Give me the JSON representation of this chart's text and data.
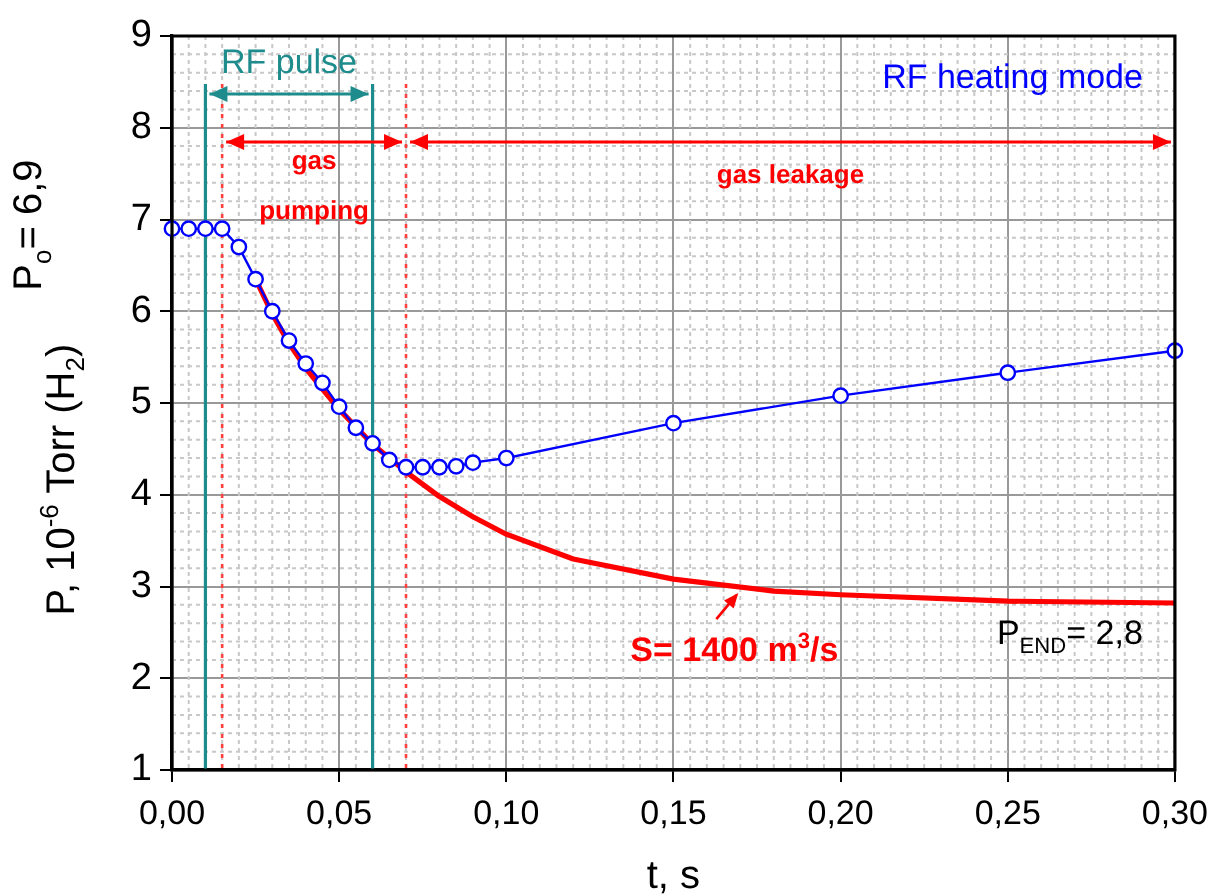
{
  "chart_data": {
    "type": "line",
    "xlabel": "t, s",
    "ylabel": "P, 10$^{-6}$ Torr (H$_{2}$)",
    "xlim": [
      0,
      0.3
    ],
    "ylim": [
      1,
      9
    ],
    "xticks": [
      {
        "value": 0,
        "label": "0,00"
      },
      {
        "value": 0.05,
        "label": "0,05"
      },
      {
        "value": 0.1,
        "label": "0,10"
      },
      {
        "value": 0.15,
        "label": "0,15"
      },
      {
        "value": 0.2,
        "label": "0,20"
      },
      {
        "value": 0.25,
        "label": "0,25"
      },
      {
        "value": 0.3,
        "label": "0,30"
      }
    ],
    "yticks": [
      1,
      2,
      3,
      4,
      5,
      6,
      7,
      8,
      9
    ],
    "grid": true,
    "legend": false,
    "marker": "circle",
    "series": [
      {
        "color": "#0000ff",
        "x": [
          0,
          0.005,
          0.01,
          0.015,
          0.02,
          0.025,
          0.03,
          0.035,
          0.04,
          0.045,
          0.05,
          0.055,
          0.06,
          0.065,
          0.07,
          0.075,
          0.08,
          0.085,
          0.09,
          0.1,
          0.15,
          0.2,
          0.25,
          0.3
        ],
        "values": [
          6.9,
          6.9,
          6.9,
          6.9,
          6.7,
          6.35,
          6.0,
          5.68,
          5.43,
          5.22,
          4.96,
          4.73,
          4.56,
          4.38,
          4.3,
          4.3,
          4.3,
          4.31,
          4.35,
          4.4,
          4.78,
          5.08,
          5.33,
          5.57
        ]
      },
      {
        "color": "#ff0000",
        "marker": "none",
        "x": [
          0.025,
          0.03,
          0.035,
          0.04,
          0.045,
          0.05,
          0.06,
          0.07,
          0.08,
          0.09,
          0.1,
          0.12,
          0.15,
          0.18,
          0.2,
          0.25,
          0.3
        ],
        "values": [
          6.35,
          5.97,
          5.65,
          5.38,
          5.15,
          4.93,
          4.55,
          4.25,
          3.98,
          3.76,
          3.57,
          3.3,
          3.08,
          2.95,
          2.91,
          2.84,
          2.82
        ]
      }
    ],
    "ref_lines": [
      {
        "axis": "x",
        "value": 0.01,
        "color": "#1e8c8c",
        "line_style": "solid"
      },
      {
        "axis": "x",
        "value": 0.06,
        "color": "#1e8c8c",
        "line_style": "solid"
      },
      {
        "axis": "x",
        "value": 0.015,
        "color": "#ff4040",
        "line_style": "dotted"
      },
      {
        "axis": "x",
        "value": 0.07,
        "color": "#ff4040",
        "line_style": "dotted"
      }
    ],
    "annotations": [
      "RF heating mode",
      "RF pulse",
      "gas pumping",
      "gas leakage",
      {
        "text": "P$_{o}$= 6,9",
        "x": 0,
        "y": 6.9
      },
      {
        "text": "S= 1400 m$^{3}$/s",
        "x": 0.17,
        "y": 2.95
      },
      {
        "text": "P$_{END}$= 2,8",
        "x": 0.3,
        "y": 2.8
      }
    ]
  }
}
